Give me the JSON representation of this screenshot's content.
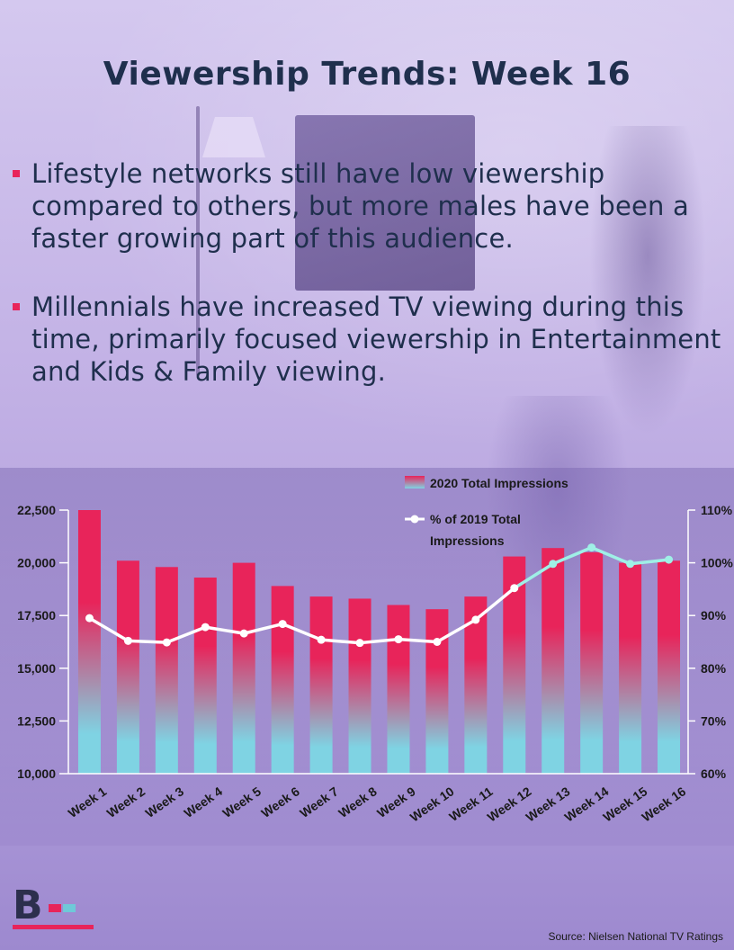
{
  "page": {
    "title": "Viewership Trends: Week 16",
    "bullets": [
      "Lifestyle networks still have low viewership compared to others, but more males have been a faster growing part of this audience.",
      "Millennials have increased TV viewing during this time, primarily focused viewership in Entertainment and Kids & Family viewing."
    ],
    "source": "Source: Nielsen National TV  Ratings",
    "logo_letter": "B"
  },
  "colors": {
    "bar_top": "#e8245a",
    "bar_bottom": "#7fd3e3",
    "line": "#ffffff",
    "line_late": "#9ff0e6",
    "title": "#1f2f4d",
    "accent": "#e8245a"
  },
  "chart_data": {
    "type": "bar",
    "categories": [
      "Week 1",
      "Week 2",
      "Week 3",
      "Week 4",
      "Week 5",
      "Week 6",
      "Week 7",
      "Week 8",
      "Week 9",
      "Week 10",
      "Week 11",
      "Week 12",
      "Week 13",
      "Week 14",
      "Week 15",
      "Week 16"
    ],
    "series": [
      {
        "name": "2020 Total Impressions",
        "type": "bar",
        "axis": "left",
        "values": [
          22500,
          20100,
          19800,
          19300,
          20000,
          18900,
          18400,
          18300,
          18000,
          17800,
          18400,
          20300,
          20700,
          20500,
          20000,
          20100
        ]
      },
      {
        "name": "% of 2019 Total Impressions",
        "type": "line",
        "axis": "right",
        "values": [
          89.5,
          85.2,
          84.9,
          87.8,
          86.6,
          88.4,
          85.4,
          84.8,
          85.5,
          85.0,
          89.2,
          95.2,
          99.8,
          102.9,
          99.8,
          100.6
        ]
      }
    ],
    "left_axis": {
      "min": 10000,
      "max": 22500,
      "ticks": [
        "10,000",
        "12,500",
        "15,000",
        "17,500",
        "20,000",
        "22,500"
      ]
    },
    "right_axis": {
      "min": 60,
      "max": 110,
      "ticks": [
        "60%",
        "70%",
        "80%",
        "90%",
        "100%",
        "110%"
      ]
    },
    "legend": {
      "bar_label": "2020 Total Impressions",
      "line_label_1": "% of 2019 Total",
      "line_label_2": "Impressions",
      "position": "top-right"
    },
    "grid": false
  }
}
